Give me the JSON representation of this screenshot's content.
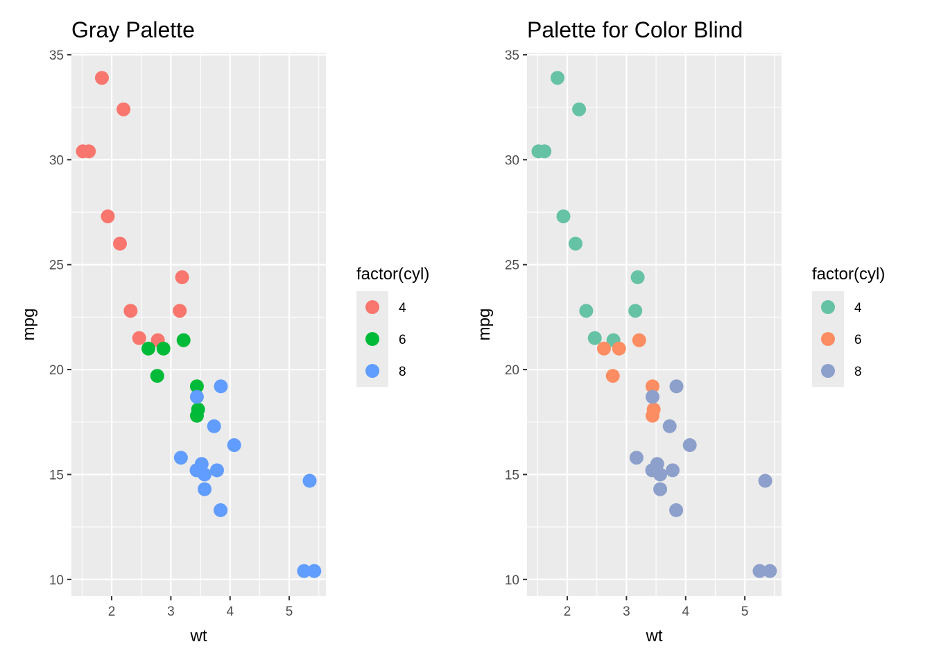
{
  "chart_data": [
    {
      "type": "scatter",
      "title": "Gray Palette",
      "xlabel": "wt",
      "ylabel": "mpg",
      "xlim": [
        1.32,
        5.62
      ],
      "ylim": [
        9.2,
        35.1
      ],
      "x_ticks": [
        2,
        3,
        4,
        5
      ],
      "x_tick_labels": [
        "2",
        "3",
        "4",
        "5"
      ],
      "y_ticks": [
        10,
        15,
        20,
        25,
        30,
        35
      ],
      "y_tick_labels": [
        "10",
        "15",
        "20",
        "25",
        "30",
        "35"
      ],
      "grid": true,
      "legend": {
        "title": "factor(cyl)",
        "position": "right",
        "entries": [
          {
            "label": "4",
            "color": "#F8766D"
          },
          {
            "label": "6",
            "color": "#00BA38"
          },
          {
            "label": "8",
            "color": "#619CFF"
          }
        ]
      },
      "series": [
        {
          "name": "4",
          "color": "#F8766D",
          "points": [
            [
              2.32,
              22.8
            ],
            [
              3.19,
              24.4
            ],
            [
              3.15,
              22.8
            ],
            [
              2.2,
              32.4
            ],
            [
              1.615,
              30.4
            ],
            [
              1.835,
              33.9
            ],
            [
              2.465,
              21.5
            ],
            [
              1.935,
              27.3
            ],
            [
              2.14,
              26.0
            ],
            [
              1.513,
              30.4
            ],
            [
              2.78,
              21.4
            ]
          ]
        },
        {
          "name": "6",
          "color": "#00BA38",
          "points": [
            [
              2.62,
              21.0
            ],
            [
              2.875,
              21.0
            ],
            [
              3.215,
              21.4
            ],
            [
              3.46,
              18.1
            ],
            [
              3.44,
              19.2
            ],
            [
              3.44,
              17.8
            ],
            [
              2.77,
              19.7
            ]
          ]
        },
        {
          "name": "8",
          "color": "#619CFF",
          "points": [
            [
              3.44,
              18.7
            ],
            [
              3.57,
              14.3
            ],
            [
              4.07,
              16.4
            ],
            [
              3.73,
              17.3
            ],
            [
              3.78,
              15.2
            ],
            [
              5.25,
              10.4
            ],
            [
              5.424,
              10.4
            ],
            [
              5.345,
              14.7
            ],
            [
              3.52,
              15.5
            ],
            [
              3.435,
              15.2
            ],
            [
              3.84,
              13.3
            ],
            [
              3.845,
              19.2
            ],
            [
              3.17,
              15.8
            ],
            [
              3.57,
              15.0
            ]
          ]
        }
      ]
    },
    {
      "type": "scatter",
      "title": "Palette for Color Blind",
      "xlabel": "wt",
      "ylabel": "mpg",
      "xlim": [
        1.32,
        5.62
      ],
      "ylim": [
        9.2,
        35.1
      ],
      "x_ticks": [
        2,
        3,
        4,
        5
      ],
      "x_tick_labels": [
        "2",
        "3",
        "4",
        "5"
      ],
      "y_ticks": [
        10,
        15,
        20,
        25,
        30,
        35
      ],
      "y_tick_labels": [
        "10",
        "15",
        "20",
        "25",
        "30",
        "35"
      ],
      "grid": true,
      "legend": {
        "title": "factor(cyl)",
        "position": "right",
        "entries": [
          {
            "label": "4",
            "color": "#66C2A5"
          },
          {
            "label": "6",
            "color": "#FC8D62"
          },
          {
            "label": "8",
            "color": "#8DA0CB"
          }
        ]
      },
      "series": [
        {
          "name": "4",
          "color": "#66C2A5",
          "points": [
            [
              2.32,
              22.8
            ],
            [
              3.19,
              24.4
            ],
            [
              3.15,
              22.8
            ],
            [
              2.2,
              32.4
            ],
            [
              1.615,
              30.4
            ],
            [
              1.835,
              33.9
            ],
            [
              2.465,
              21.5
            ],
            [
              1.935,
              27.3
            ],
            [
              2.14,
              26.0
            ],
            [
              1.513,
              30.4
            ],
            [
              2.78,
              21.4
            ]
          ]
        },
        {
          "name": "6",
          "color": "#FC8D62",
          "points": [
            [
              2.62,
              21.0
            ],
            [
              2.875,
              21.0
            ],
            [
              3.215,
              21.4
            ],
            [
              3.46,
              18.1
            ],
            [
              3.44,
              19.2
            ],
            [
              3.44,
              17.8
            ],
            [
              2.77,
              19.7
            ]
          ]
        },
        {
          "name": "8",
          "color": "#8DA0CB",
          "points": [
            [
              3.44,
              18.7
            ],
            [
              3.57,
              14.3
            ],
            [
              4.07,
              16.4
            ],
            [
              3.73,
              17.3
            ],
            [
              3.78,
              15.2
            ],
            [
              5.25,
              10.4
            ],
            [
              5.424,
              10.4
            ],
            [
              5.345,
              14.7
            ],
            [
              3.52,
              15.5
            ],
            [
              3.435,
              15.2
            ],
            [
              3.84,
              13.3
            ],
            [
              3.845,
              19.2
            ],
            [
              3.17,
              15.8
            ],
            [
              3.57,
              15.0
            ]
          ]
        }
      ]
    }
  ]
}
